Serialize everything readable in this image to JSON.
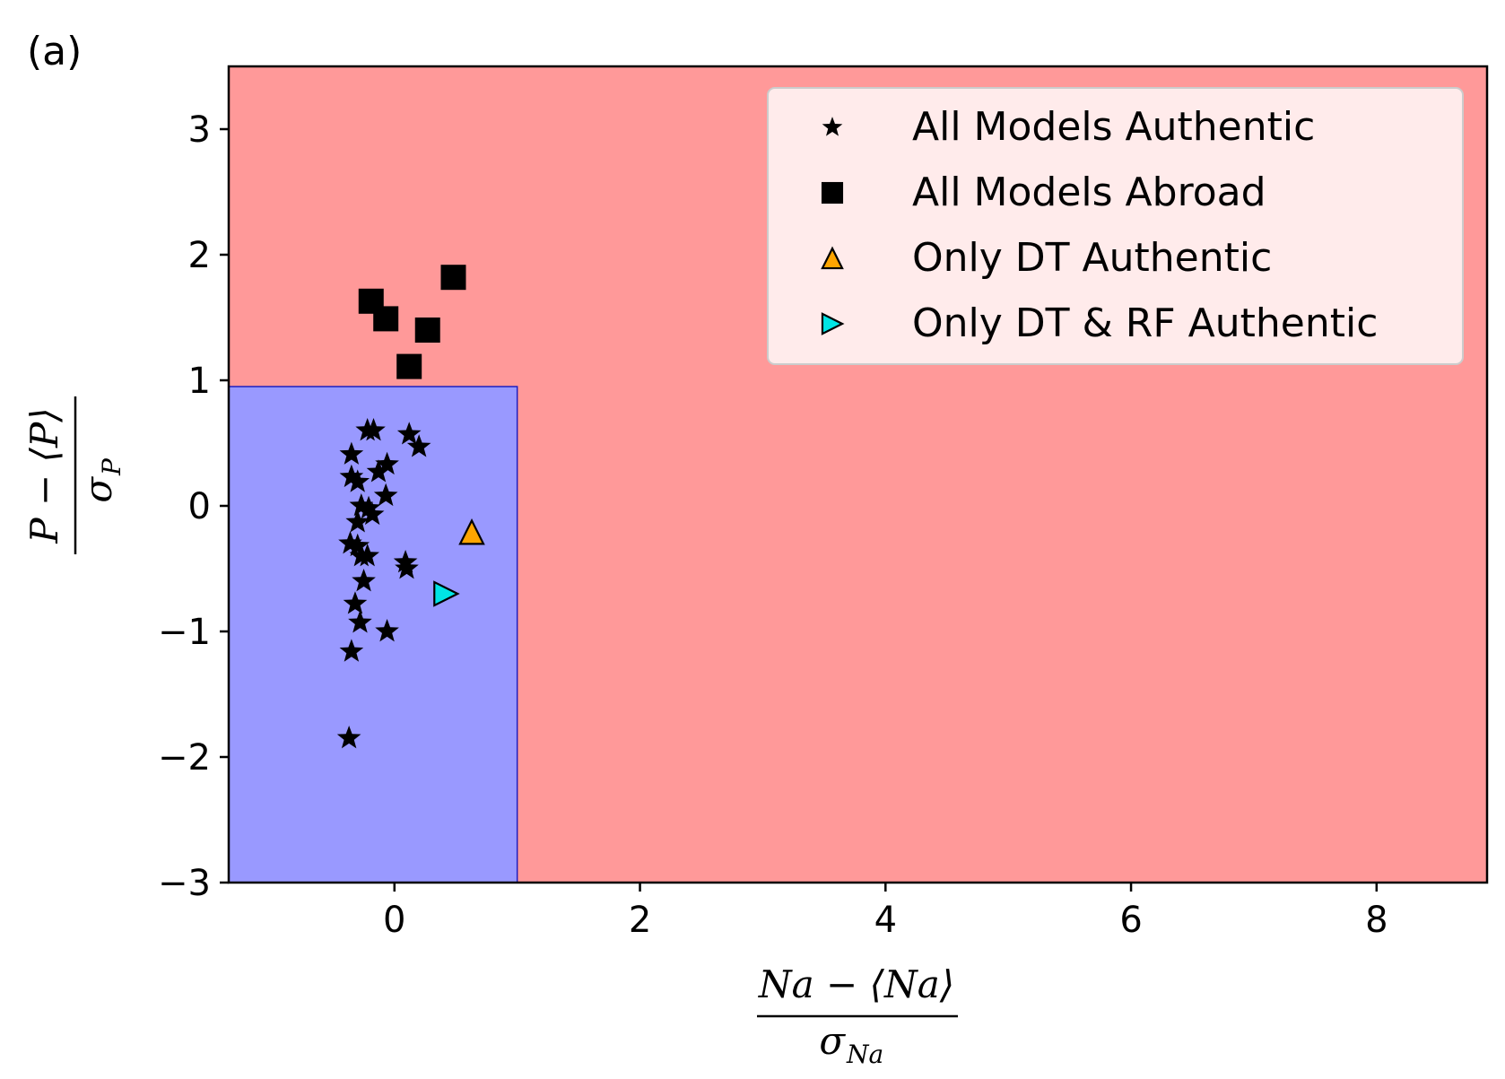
{
  "chart_data": {
    "type": "scatter",
    "panel_label": "(a)",
    "xlabel": {
      "numerator": "Na − ⟨Na⟩",
      "denominator": "σ",
      "denominator_sub": "Na"
    },
    "ylabel": {
      "numerator": "P − ⟨P⟩",
      "denominator": "σ",
      "denominator_sub": "P"
    },
    "xlim": [
      -1.35,
      8.9
    ],
    "ylim": [
      -3.0,
      3.5
    ],
    "xticks": [
      0,
      2,
      4,
      6,
      8
    ],
    "xtick_labels": [
      "0",
      "2",
      "4",
      "6",
      "8"
    ],
    "yticks": [
      -3,
      -2,
      -1,
      0,
      1,
      2,
      3
    ],
    "ytick_labels": [
      "−3",
      "−2",
      "−1",
      "0",
      "1",
      "2",
      "3"
    ],
    "regions": [
      {
        "class": "abroad",
        "color": "#ff9999",
        "x": [
          -1.35,
          8.9
        ],
        "y": [
          -3.0,
          3.5
        ]
      },
      {
        "class": "authentic",
        "color": "#9999ff",
        "edge": "#1f1fbf",
        "x": [
          -1.35,
          1.0
        ],
        "y": [
          -3.0,
          0.95
        ]
      }
    ],
    "legend_position": "upper right",
    "series": [
      {
        "name": "All Models Authentic",
        "marker": "star",
        "color": "#000000",
        "points": [
          [
            -0.22,
            0.6
          ],
          [
            -0.17,
            0.6
          ],
          [
            0.12,
            0.57
          ],
          [
            0.2,
            0.47
          ],
          [
            -0.35,
            0.41
          ],
          [
            -0.06,
            0.33
          ],
          [
            -0.13,
            0.27
          ],
          [
            -0.35,
            0.23
          ],
          [
            -0.3,
            0.19
          ],
          [
            -0.07,
            0.08
          ],
          [
            -0.27,
            0.0
          ],
          [
            -0.21,
            -0.02
          ],
          [
            -0.18,
            -0.07
          ],
          [
            -0.3,
            -0.13
          ],
          [
            -0.36,
            -0.3
          ],
          [
            -0.3,
            -0.32
          ],
          [
            -0.22,
            -0.4
          ],
          [
            -0.27,
            -0.4
          ],
          [
            0.09,
            -0.45
          ],
          [
            0.1,
            -0.5
          ],
          [
            -0.25,
            -0.6
          ],
          [
            -0.32,
            -0.78
          ],
          [
            -0.28,
            -0.93
          ],
          [
            -0.06,
            -1.0
          ],
          [
            -0.35,
            -1.16
          ],
          [
            -0.37,
            -1.85
          ]
        ]
      },
      {
        "name": "All Models Abroad",
        "marker": "square",
        "color": "#000000",
        "points": [
          [
            0.48,
            1.82
          ],
          [
            -0.19,
            1.63
          ],
          [
            -0.07,
            1.49
          ],
          [
            0.27,
            1.4
          ],
          [
            0.12,
            1.11
          ]
        ]
      },
      {
        "name": "Only DT Authentic",
        "marker": "triangle-up",
        "color": "#ffa500",
        "points": [
          [
            0.63,
            -0.21
          ]
        ]
      },
      {
        "name": "Only DT & RF Authentic",
        "marker": "triangle-right",
        "color": "#00e5e5",
        "points": [
          [
            0.42,
            -0.7
          ]
        ]
      }
    ]
  }
}
